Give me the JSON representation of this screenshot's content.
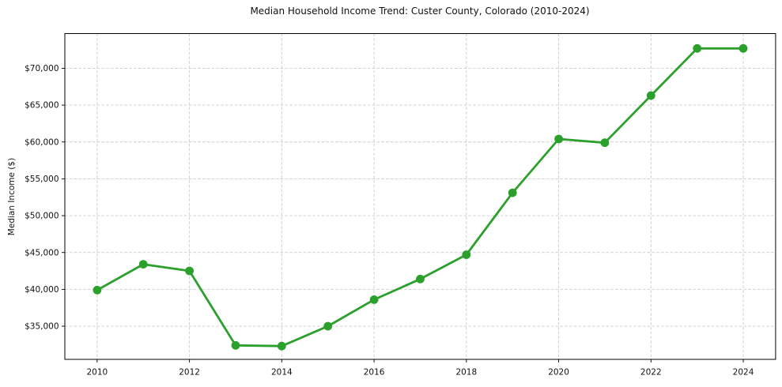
{
  "chart_data": {
    "type": "line",
    "title": "Median Household Income Trend: Custer County, Colorado (2010-2024)",
    "xlabel": "",
    "ylabel": "Median Income ($)",
    "x": [
      2010,
      2011,
      2012,
      2013,
      2014,
      2015,
      2016,
      2017,
      2018,
      2019,
      2020,
      2021,
      2022,
      2023,
      2024
    ],
    "series": [
      {
        "name": "Median household income",
        "color": "#2ca02c",
        "marker": "circle",
        "values": [
          39900,
          43400,
          42500,
          32400,
          32300,
          35000,
          38600,
          41400,
          44700,
          53100,
          60400,
          59900,
          66300,
          72700,
          72700
        ]
      }
    ],
    "xticks": [
      2010,
      2012,
      2014,
      2016,
      2018,
      2020,
      2022,
      2024
    ],
    "yticks": {
      "values": [
        35000,
        40000,
        45000,
        50000,
        55000,
        60000,
        65000,
        70000
      ],
      "labels": [
        "$35,000",
        "$40,000",
        "$45,000",
        "$50,000",
        "$55,000",
        "$60,000",
        "$65,000",
        "$70,000"
      ]
    },
    "xlim": [
      2009.3,
      2024.7
    ],
    "ylim": [
      30500,
      74710
    ],
    "grid": {
      "show": true,
      "linestyle": "dashed",
      "color": "#cccccc"
    },
    "legend": "none",
    "background": "#ffffff"
  }
}
